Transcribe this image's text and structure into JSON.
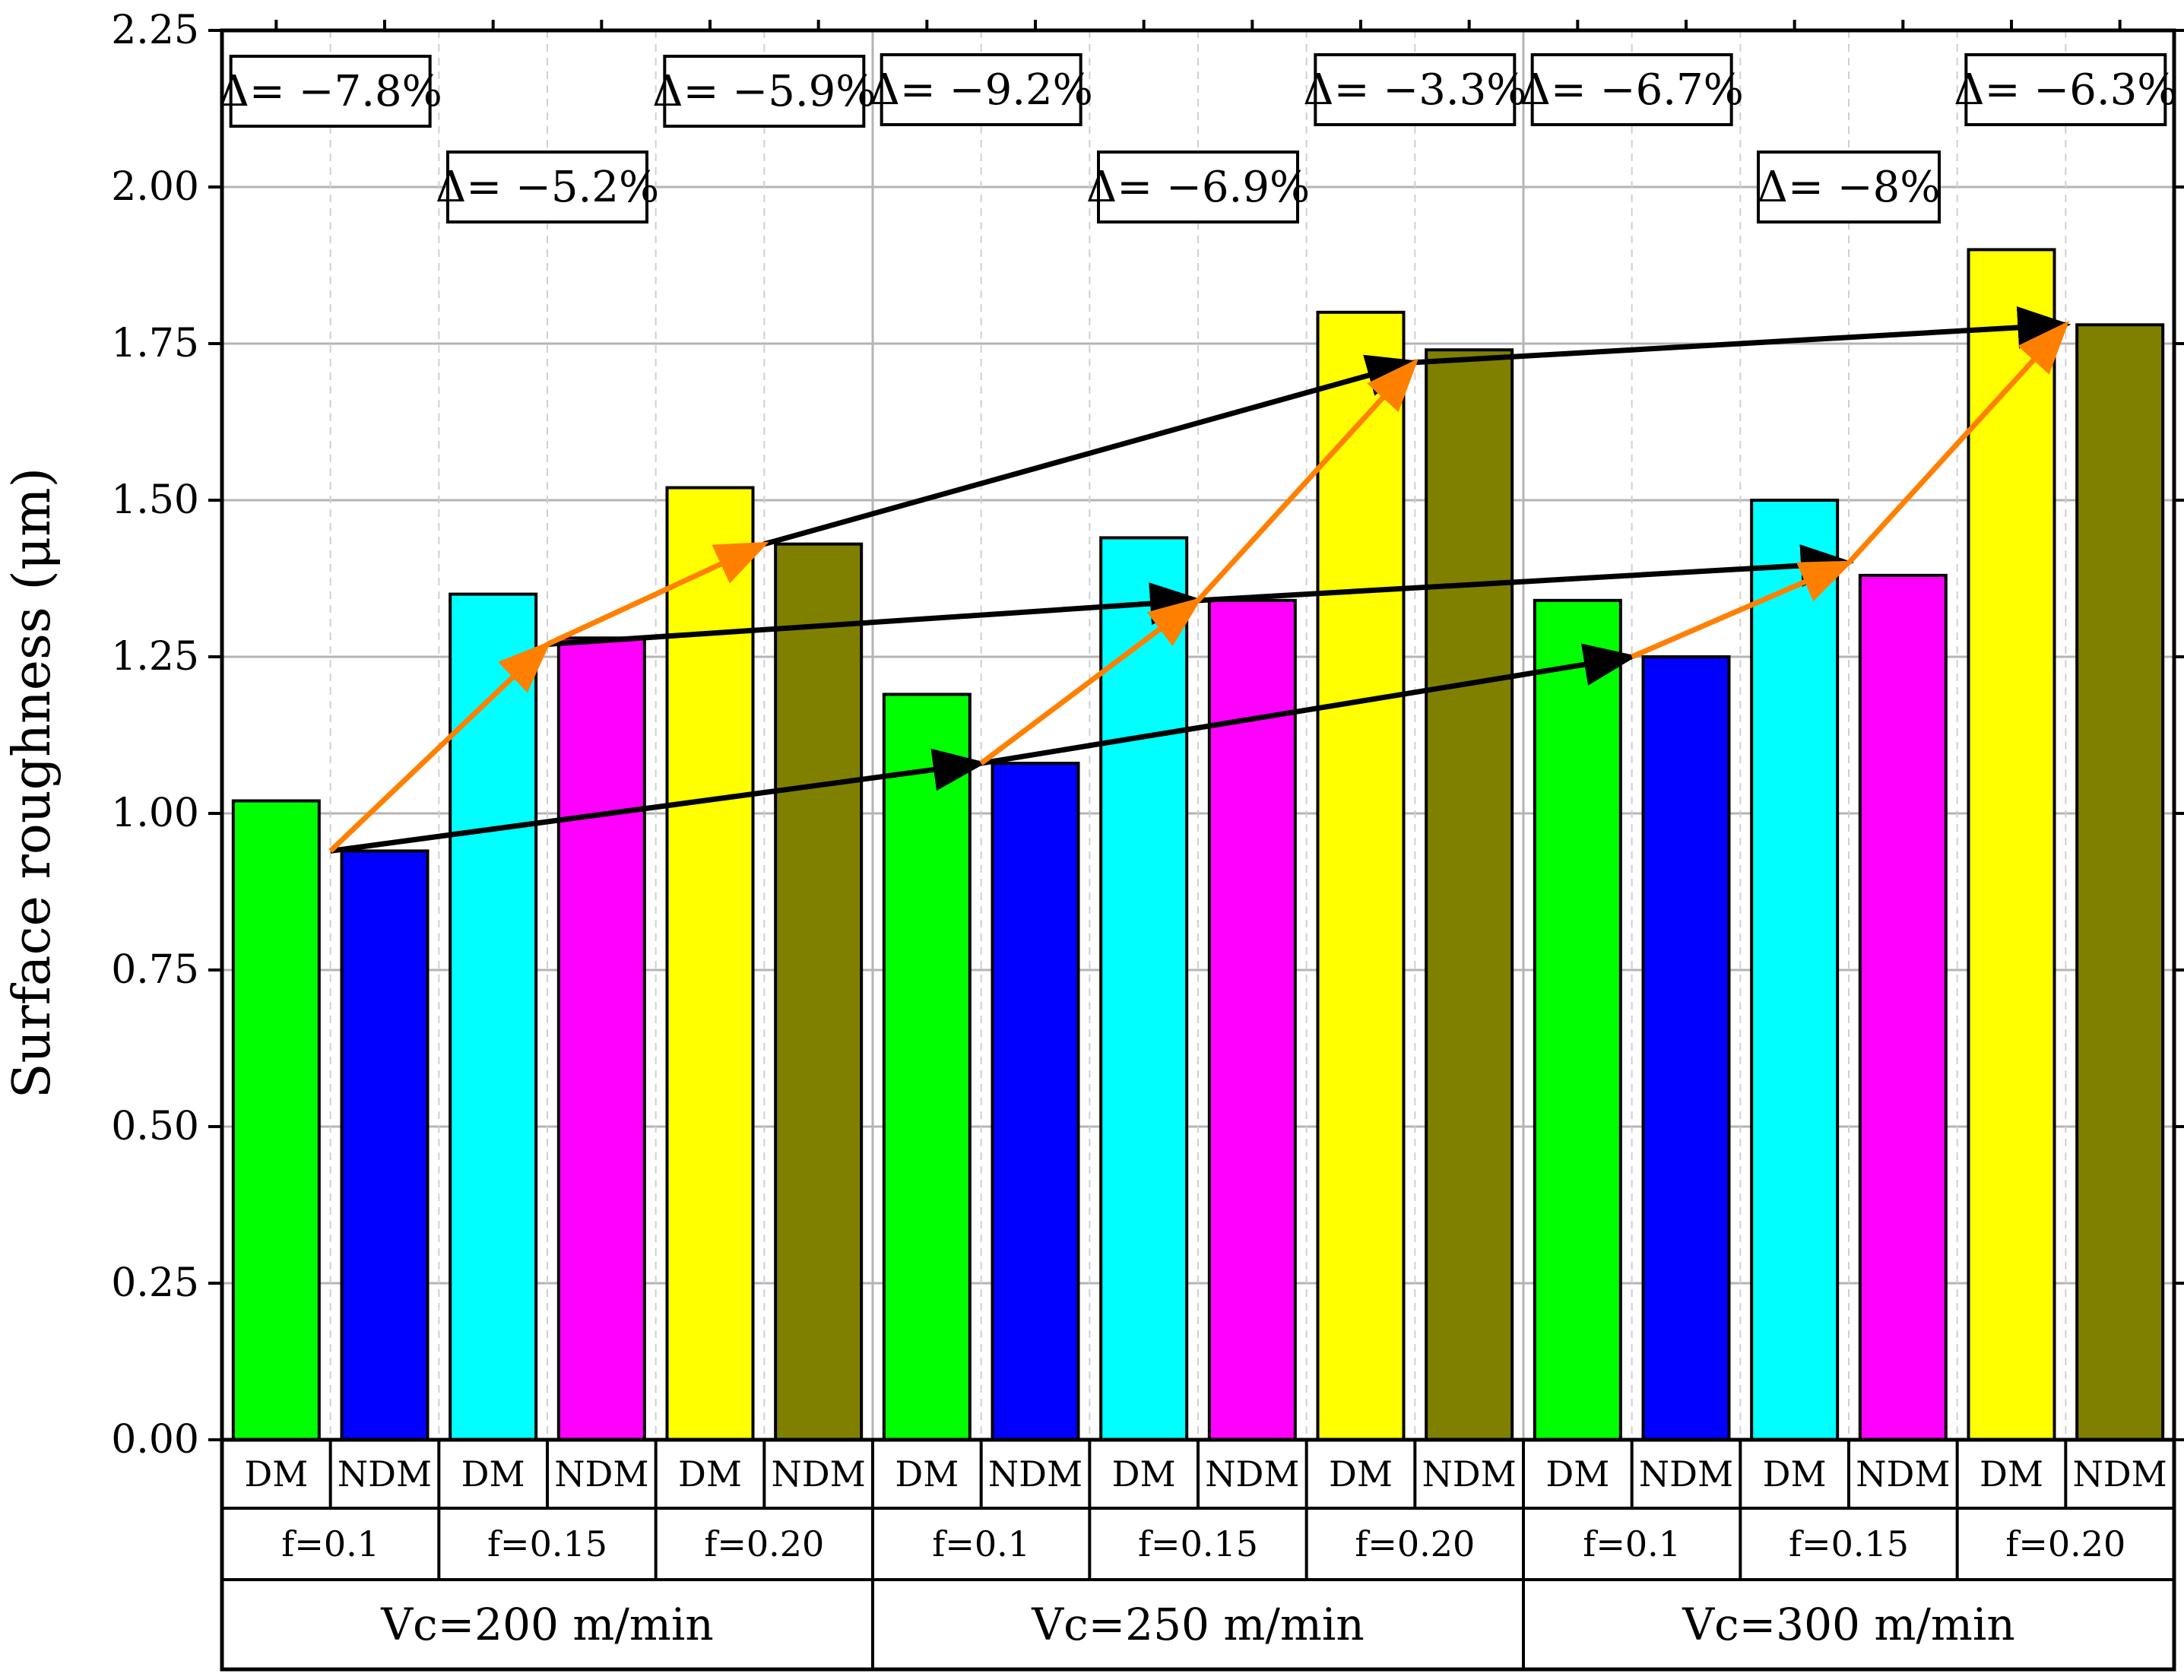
{
  "chart_data": {
    "type": "bar",
    "title": "",
    "xlabel": "",
    "ylabel": "Surface roughness (μm)",
    "ylim": [
      0,
      2.25
    ],
    "yticks": [
      "0.00",
      "0.25",
      "0.50",
      "0.75",
      "1.00",
      "1.25",
      "1.50",
      "1.75",
      "2.00",
      "2.25"
    ],
    "categories": [
      "DM",
      "NDM",
      "DM",
      "NDM",
      "DM",
      "NDM",
      "DM",
      "NDM",
      "DM",
      "NDM",
      "DM",
      "NDM",
      "DM",
      "NDM",
      "DM",
      "NDM",
      "DM",
      "NDM"
    ],
    "values": [
      1.02,
      0.94,
      1.35,
      1.28,
      1.52,
      1.43,
      1.19,
      1.08,
      1.44,
      1.34,
      1.8,
      1.74,
      1.34,
      1.25,
      1.5,
      1.38,
      1.9,
      1.78
    ],
    "bar_colors": [
      "#00ff00",
      "#0000ff",
      "#00ffff",
      "#ff00ff",
      "#ffff00",
      "#808000",
      "#00ff00",
      "#0000ff",
      "#00ffff",
      "#ff00ff",
      "#ffff00",
      "#808000",
      "#00ff00",
      "#0000ff",
      "#00ffff",
      "#ff00ff",
      "#ffff00",
      "#808000"
    ],
    "feed_groups": [
      "f=0.1",
      "f=0.15",
      "f=0.20",
      "f=0.1",
      "f=0.15",
      "f=0.20",
      "f=0.1",
      "f=0.15",
      "f=0.20"
    ],
    "speed_groups": [
      "Vc=200 m/min",
      "Vc=250 m/min",
      "Vc=300 m/min"
    ],
    "annotations": [
      "Δ= −7.8%",
      "Δ= −5.2%",
      "Δ= −5.9%",
      "Δ= −9.2%",
      "Δ= −6.9%",
      "Δ= −3.3%",
      "Δ= −6.7%",
      "Δ= −8%",
      "Δ= −6.3%"
    ],
    "orange_arrow_color": "#ff8000",
    "black_arrow_color": "#000000",
    "orange_path_values": [
      [
        0.94,
        1.27,
        1.43
      ],
      [
        1.08,
        1.34,
        1.72
      ],
      [
        1.25,
        1.4,
        1.78
      ]
    ],
    "black_path_values": [
      [
        0.94,
        1.08,
        1.25
      ],
      [
        1.27,
        1.34,
        1.4
      ],
      [
        1.43,
        1.72,
        1.78
      ]
    ]
  }
}
